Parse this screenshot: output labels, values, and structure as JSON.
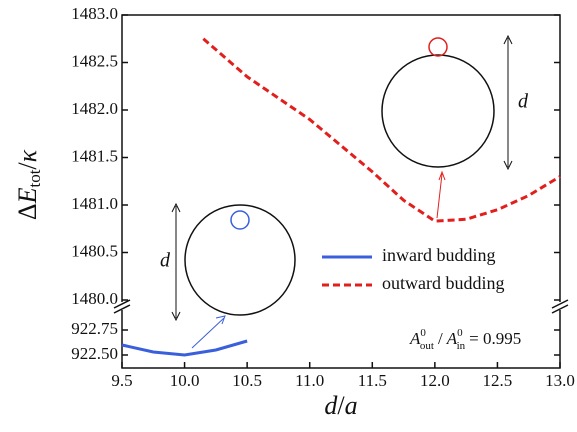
{
  "chart_data": {
    "type": "line",
    "xlabel": {
      "d": "d",
      "slash": "/",
      "a": "a"
    },
    "ylabel": {
      "delta": "Δ",
      "E": "E",
      "sub": "tot",
      "slash": "/",
      "kappa": "κ"
    },
    "xlim": [
      9.5,
      13.0
    ],
    "xticks": [
      9.5,
      {
        "value": 10.0,
        "label": "10.0"
      },
      10.5,
      {
        "value": 11.0,
        "label": "11.0"
      },
      11.5,
      {
        "value": 12.0,
        "label": "12.0"
      },
      12.5,
      {
        "value": 13.0,
        "label": "13.0"
      }
    ],
    "ylim": [
      1480.0,
      1483.0
    ],
    "yticks": [
      {
        "value": 1480.0,
        "label": "1480.0"
      },
      1480.5,
      {
        "value": 1481.0,
        "label": "1481.0"
      },
      1481.5,
      {
        "value": 1482.0,
        "label": "1482.0"
      },
      1482.5,
      {
        "value": 1483.0,
        "label": "1483.0"
      }
    ],
    "y2lim": [
      922.37,
      922.95
    ],
    "y2ticks": [
      {
        "value": 922.5,
        "label": "922.50"
      },
      922.75
    ],
    "series": [
      {
        "name": "inward budding",
        "color": "#3a5fdc",
        "dash": false,
        "axis": "y2",
        "x": [
          9.5,
          9.75,
          10.0,
          10.25,
          10.5
        ],
        "values": [
          922.6,
          922.53,
          922.5,
          922.55,
          922.64
        ]
      },
      {
        "name": "outward budding",
        "color": "#e21f1c",
        "dash": true,
        "x": [
          10.15,
          10.5,
          11.0,
          11.5,
          11.75,
          12.0,
          12.25,
          12.5,
          12.75,
          13.0
        ],
        "values": [
          1482.75,
          1482.35,
          1481.9,
          1481.35,
          1481.05,
          1480.83,
          1480.85,
          1480.95,
          1481.1,
          1481.3
        ]
      }
    ],
    "annotation": {
      "A": "A",
      "sup1": "0",
      "sub1": "out",
      "sep": "/",
      "A2": "A",
      "sup2": "0",
      "sub2": "in",
      "rest": "= 0.995"
    },
    "inset_labels": [
      "d",
      "d"
    ]
  }
}
